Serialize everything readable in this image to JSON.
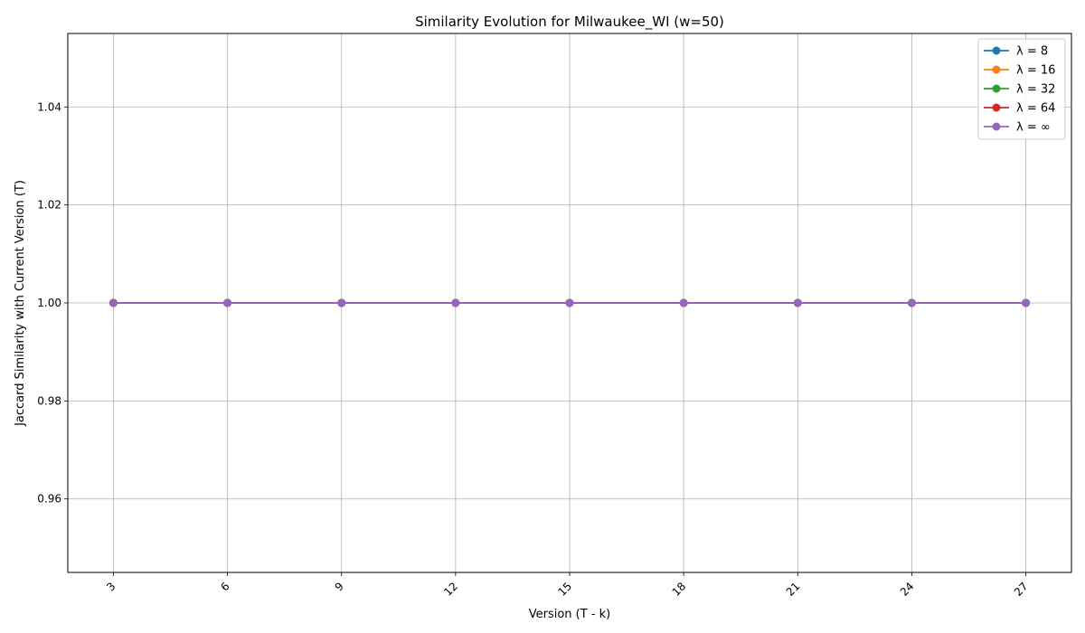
{
  "chart_data": {
    "type": "line",
    "title": "Similarity Evolution for Milwaukee_WI (w=50)",
    "xlabel": "Version (T - k)",
    "ylabel": "Jaccard Similarity with Current Version (T)",
    "x": [
      3,
      6,
      9,
      12,
      15,
      18,
      21,
      24,
      27
    ],
    "x_tick_labels": [
      "3",
      "6",
      "9",
      "12",
      "15",
      "18",
      "21",
      "24",
      "27"
    ],
    "x_tick_rotation": 45,
    "ylim": [
      0.945,
      1.055
    ],
    "y_ticks": [
      0.96,
      0.98,
      1.0,
      1.02,
      1.04
    ],
    "y_tick_labels": [
      "0.96",
      "0.98",
      "1.00",
      "1.02",
      "1.04"
    ],
    "grid": true,
    "legend_position": "top-right",
    "series": [
      {
        "name": "λ = 8",
        "color": "#1f77b4",
        "values": [
          1,
          1,
          1,
          1,
          1,
          1,
          1,
          1,
          1
        ]
      },
      {
        "name": "λ = 16",
        "color": "#ff7f0e",
        "values": [
          1,
          1,
          1,
          1,
          1,
          1,
          1,
          1,
          1
        ]
      },
      {
        "name": "λ = 32",
        "color": "#2ca02c",
        "values": [
          1,
          1,
          1,
          1,
          1,
          1,
          1,
          1,
          1
        ]
      },
      {
        "name": "λ = 64",
        "color": "#d62728",
        "values": [
          1,
          1,
          1,
          1,
          1,
          1,
          1,
          1,
          1
        ]
      },
      {
        "name": "λ = ∞",
        "color": "#9467bd",
        "values": [
          1,
          1,
          1,
          1,
          1,
          1,
          1,
          1,
          1
        ]
      }
    ]
  }
}
